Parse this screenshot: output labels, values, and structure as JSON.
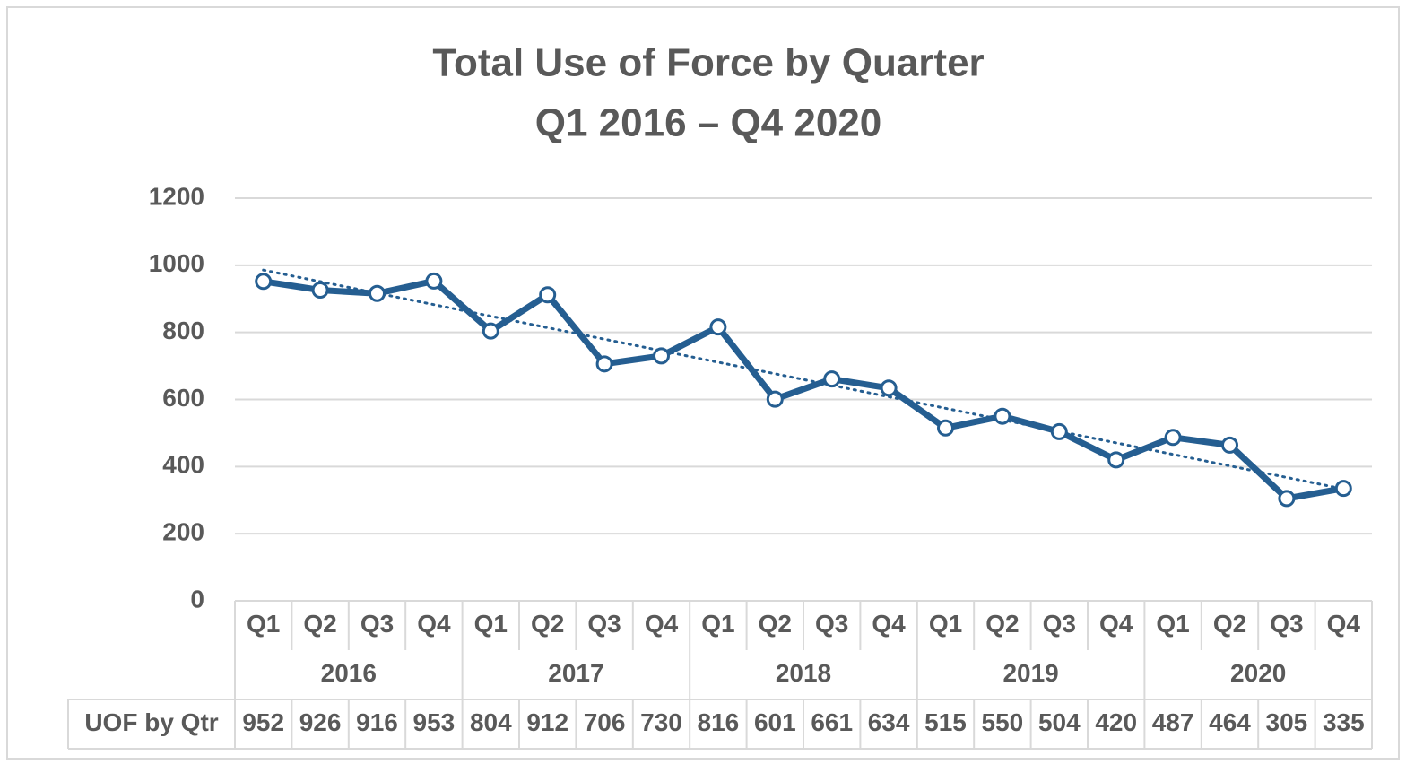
{
  "chart_data": {
    "type": "line",
    "title": [
      "Total Use of Force by Quarter",
      "Q1 2016 – Q4 2020"
    ],
    "categories": [
      "Q1",
      "Q2",
      "Q3",
      "Q4",
      "Q1",
      "Q2",
      "Q3",
      "Q4",
      "Q1",
      "Q2",
      "Q3",
      "Q4",
      "Q1",
      "Q2",
      "Q3",
      "Q4",
      "Q1",
      "Q2",
      "Q3",
      "Q4"
    ],
    "category_groups": [
      "2016",
      "2017",
      "2018",
      "2019",
      "2020"
    ],
    "series": [
      {
        "name": "UOF by Qtr",
        "color": "#255e91",
        "trendline": "linear",
        "values": [
          952,
          926,
          916,
          953,
          804,
          912,
          706,
          730,
          816,
          601,
          661,
          634,
          515,
          550,
          504,
          420,
          487,
          464,
          305,
          335
        ]
      }
    ],
    "ylim": [
      0,
      1200
    ],
    "yticks": [
      0,
      200,
      400,
      600,
      800,
      1000,
      1200
    ],
    "grid": true,
    "data_table": true
  }
}
